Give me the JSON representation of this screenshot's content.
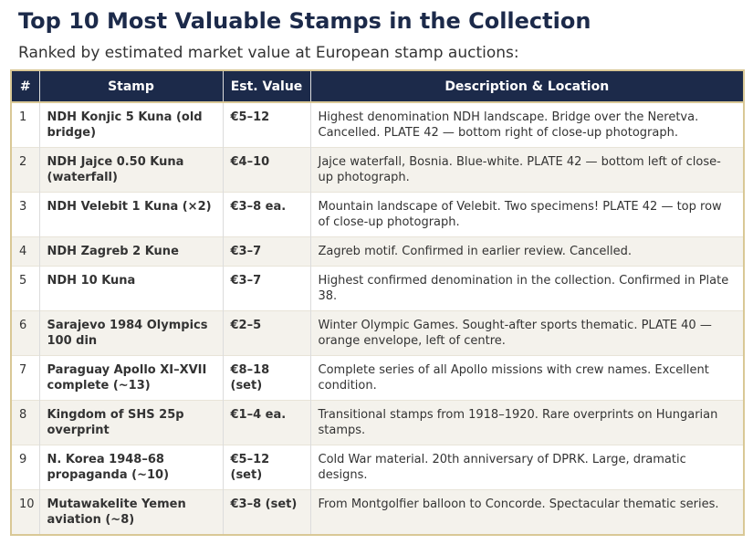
{
  "title": "Top 10 Most Valuable Stamps in the Collection",
  "subtitle": "Ranked by estimated market value at European stamp auctions:",
  "table": {
    "headers": [
      "#",
      "Stamp",
      "Est. Value",
      "Description & Location"
    ],
    "rows": [
      {
        "num": "1",
        "stamp": "NDH Konjic 5 Kuna (old bridge)",
        "value": "€5–12",
        "desc": "Highest denomination NDH landscape. Bridge over the Neretva. Cancelled. PLATE 42 — bottom right of close-up photograph."
      },
      {
        "num": "2",
        "stamp": "NDH Jajce 0.50 Kuna (waterfall)",
        "value": "€4–10",
        "desc": "Jajce waterfall, Bosnia. Blue-white. PLATE 42 — bottom left of close-up photograph."
      },
      {
        "num": "3",
        "stamp": "NDH Velebit 1 Kuna (×2)",
        "value": "€3–8 ea.",
        "desc": "Mountain landscape of Velebit. Two specimens! PLATE 42 — top row of close-up photograph."
      },
      {
        "num": "4",
        "stamp": "NDH Zagreb 2 Kune",
        "value": "€3–7",
        "desc": "Zagreb motif. Confirmed in earlier review. Cancelled."
      },
      {
        "num": "5",
        "stamp": "NDH 10 Kuna",
        "value": "€3–7",
        "desc": "Highest confirmed denomination in the collection. Confirmed in Plate 38."
      },
      {
        "num": "6",
        "stamp": "Sarajevo 1984 Olympics 100 din",
        "value": "€2–5",
        "desc": "Winter Olympic Games. Sought-after sports thematic. PLATE 40 — orange envelope, left of centre."
      },
      {
        "num": "7",
        "stamp": "Paraguay Apollo XI–XVII complete (~13)",
        "value": "€8–18 (set)",
        "desc": "Complete series of all Apollo missions with crew names. Excellent condition."
      },
      {
        "num": "8",
        "stamp": "Kingdom of SHS 25p overprint",
        "value": "€1–4 ea.",
        "desc": "Transitional stamps from 1918–1920. Rare overprints on Hungarian stamps."
      },
      {
        "num": "9",
        "stamp": "N. Korea 1948–68 propaganda (~10)",
        "value": "€5–12 (set)",
        "desc": "Cold War material. 20th anniversary of DPRK. Large, dramatic designs."
      },
      {
        "num": "10",
        "stamp": "Mutawakelite Yemen aviation (~8)",
        "value": "€3–8 (set)",
        "desc": "From Montgolfier balloon to Concorde. Spectacular thematic series."
      }
    ]
  }
}
